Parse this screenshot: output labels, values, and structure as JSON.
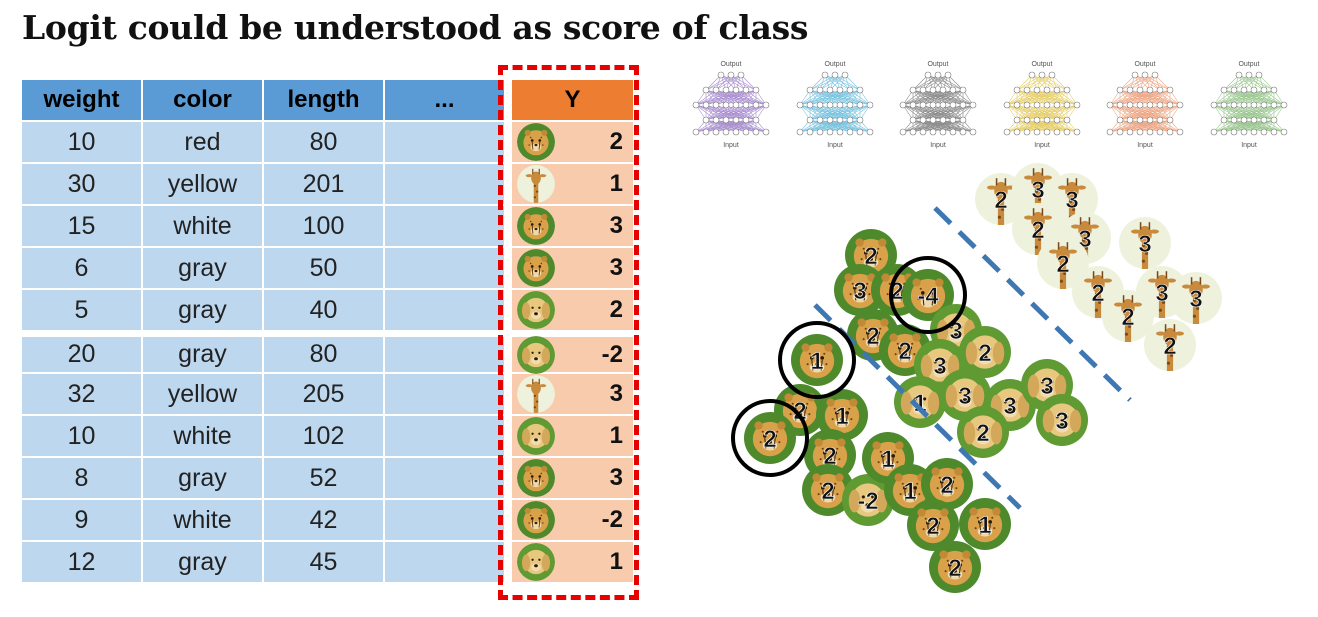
{
  "title": "Logit could be understood as score of class",
  "table": {
    "headers": [
      "weight",
      "color",
      "length",
      "...",
      "Y"
    ],
    "rows": [
      {
        "weight": "10",
        "color": "red",
        "length": "80",
        "animal": "cheetah",
        "y": "2"
      },
      {
        "weight": "30",
        "color": "yellow",
        "length": "201",
        "animal": "giraffe",
        "y": "1"
      },
      {
        "weight": "15",
        "color": "white",
        "length": "100",
        "animal": "cheetah",
        "y": "3"
      },
      {
        "weight": "6",
        "color": "gray",
        "length": "50",
        "animal": "cheetah",
        "y": "3"
      },
      {
        "weight": "5",
        "color": "gray",
        "length": "40",
        "animal": "dog",
        "y": "2"
      },
      {
        "weight": "20",
        "color": "gray",
        "length": "80",
        "animal": "dog",
        "y": "-2"
      },
      {
        "weight": "32",
        "color": "yellow",
        "length": "205",
        "animal": "giraffe",
        "y": "3"
      },
      {
        "weight": "10",
        "color": "white",
        "length": "102",
        "animal": "dog",
        "y": "1"
      },
      {
        "weight": "8",
        "color": "gray",
        "length": "52",
        "animal": "cheetah",
        "y": "3"
      },
      {
        "weight": "9",
        "color": "white",
        "length": "42",
        "animal": "cheetah",
        "y": "-2"
      },
      {
        "weight": "12",
        "color": "gray",
        "length": "45",
        "animal": "dog",
        "y": "1"
      }
    ]
  },
  "networks": {
    "output_label": "Output",
    "input_label": "Input",
    "colors": [
      "#a98fd0",
      "#79c4e0",
      "#8c8c8c",
      "#e6cf6a",
      "#eea886",
      "#9cc891"
    ]
  },
  "scatter": {
    "points": [
      {
        "animal": "giraffe",
        "label": "2"
      },
      {
        "animal": "giraffe",
        "label": "3"
      },
      {
        "animal": "giraffe",
        "label": "3"
      },
      {
        "animal": "giraffe",
        "label": "2"
      },
      {
        "animal": "giraffe",
        "label": "3"
      },
      {
        "animal": "giraffe",
        "label": "3"
      },
      {
        "animal": "giraffe",
        "label": "2"
      },
      {
        "animal": "giraffe",
        "label": "2"
      },
      {
        "animal": "giraffe",
        "label": "3"
      },
      {
        "animal": "giraffe",
        "label": "3"
      },
      {
        "animal": "giraffe",
        "label": "2"
      },
      {
        "animal": "giraffe",
        "label": "2"
      },
      {
        "animal": "cheetah",
        "label": "2"
      },
      {
        "animal": "cheetah",
        "label": "3"
      },
      {
        "animal": "cheetah",
        "label": "2"
      },
      {
        "animal": "cheetah",
        "label": "-4"
      },
      {
        "animal": "dog",
        "label": "3"
      },
      {
        "animal": "cheetah",
        "label": "2"
      },
      {
        "animal": "cheetah",
        "label": "2"
      },
      {
        "animal": "dog",
        "label": "3"
      },
      {
        "animal": "dog",
        "label": "2"
      },
      {
        "animal": "cheetah",
        "label": "1"
      },
      {
        "animal": "dog",
        "label": "1"
      },
      {
        "animal": "dog",
        "label": "3"
      },
      {
        "animal": "dog",
        "label": "3"
      },
      {
        "animal": "dog",
        "label": "3"
      },
      {
        "animal": "cheetah",
        "label": "2"
      },
      {
        "animal": "cheetah",
        "label": "1"
      },
      {
        "animal": "cheetah",
        "label": "2"
      },
      {
        "animal": "dog",
        "label": "2"
      },
      {
        "animal": "dog",
        "label": "3"
      },
      {
        "animal": "cheetah",
        "label": "2"
      },
      {
        "animal": "cheetah",
        "label": "2"
      },
      {
        "animal": "dog",
        "label": "-2"
      },
      {
        "animal": "cheetah",
        "label": "1"
      },
      {
        "animal": "cheetah",
        "label": "1"
      },
      {
        "animal": "cheetah",
        "label": "2"
      },
      {
        "animal": "cheetah",
        "label": "2"
      },
      {
        "animal": "cheetah",
        "label": "1"
      },
      {
        "animal": "cheetah",
        "label": "2"
      }
    ],
    "circled_labels": [
      "-4",
      "1",
      "2"
    ]
  },
  "colors": {
    "header_blue": "#5b9bd5",
    "cell_blue": "#bdd7ee",
    "header_orange": "#ed7d31",
    "cell_orange": "#f8cbad",
    "highlight_red": "#e60000",
    "divider_blue": "#3f77b2"
  }
}
